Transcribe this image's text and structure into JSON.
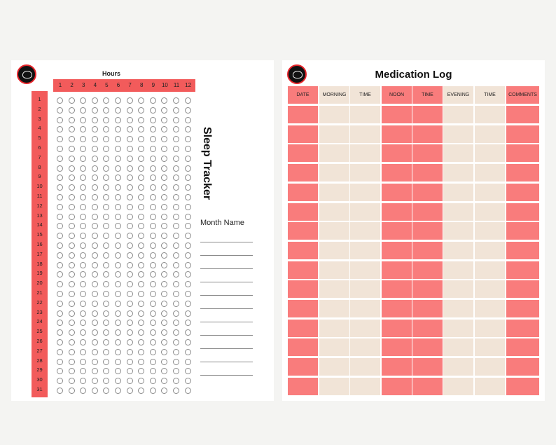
{
  "sleep_tracker": {
    "title": "Sleep Tracker",
    "hours_label": "Hours",
    "hours": [
      "1",
      "2",
      "3",
      "4",
      "5",
      "6",
      "7",
      "8",
      "9",
      "10",
      "11",
      "12"
    ],
    "days": [
      "1",
      "2",
      "3",
      "4",
      "5",
      "6",
      "7",
      "8",
      "9",
      "10",
      "11",
      "12",
      "13",
      "14",
      "15",
      "16",
      "17",
      "18",
      "19",
      "20",
      "21",
      "22",
      "23",
      "24",
      "25",
      "26",
      "27",
      "28",
      "29",
      "30",
      "31"
    ],
    "month_label": "Month Name",
    "month_line_count": 11
  },
  "medication_log": {
    "title": "Medication Log",
    "columns": [
      "DATE",
      "MORNING",
      "TIME",
      "NOON",
      "TIME",
      "EVENING",
      "TIME",
      "COMMENTS"
    ],
    "column_colors": [
      "red",
      "beige",
      "beige",
      "red",
      "red",
      "beige",
      "beige",
      "red"
    ],
    "row_count": 15
  },
  "colors": {
    "accent": "#f25b5b",
    "cell_red": "#f97c7c",
    "cell_beige": "#f1e4d7"
  },
  "icons": [
    "logo-icon"
  ]
}
